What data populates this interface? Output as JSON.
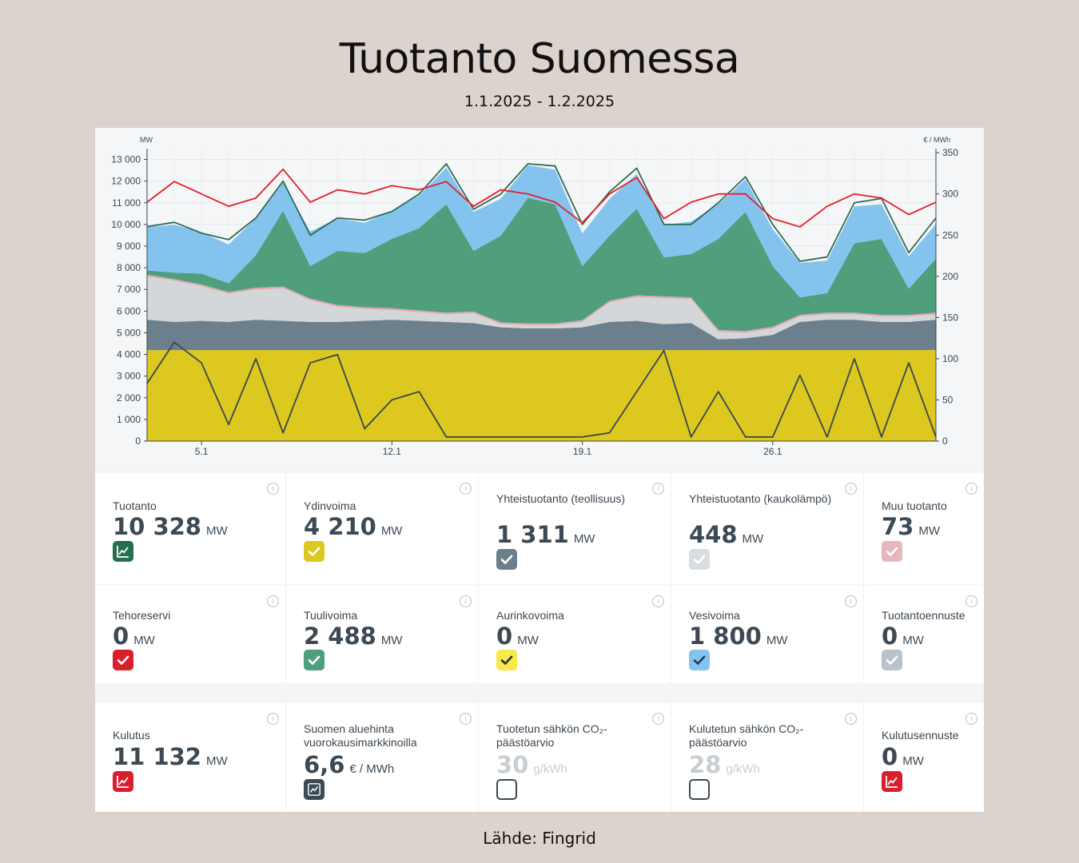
{
  "header": {
    "title": "Tuotanto Suomessa",
    "subtitle": "1.1.2025 - 1.2.2025"
  },
  "footer": {
    "source": "Lähde: Fingrid"
  },
  "chart_data": {
    "type": "area",
    "title": "",
    "ylabel_left": "MW",
    "ylabel_right": "€ / MWh",
    "ylim_left": [
      0,
      13500
    ],
    "ylim_right": [
      0,
      355
    ],
    "yticks_left": [
      0,
      1000,
      2000,
      3000,
      4000,
      5000,
      6000,
      7000,
      8000,
      9000,
      10000,
      11000,
      12000,
      13000
    ],
    "ytick_labels_left": [
      "0",
      "1 000",
      "2 000",
      "3 000",
      "4 000",
      "5 000",
      "6 000",
      "7 000",
      "8 000",
      "9 000",
      "10 000",
      "11 000",
      "12 000",
      "13 000"
    ],
    "yticks_right": [
      0,
      50,
      100,
      150,
      200,
      250,
      300,
      350
    ],
    "ytick_labels_right": [
      "0",
      "50",
      "100",
      "150",
      "200",
      "250",
      "300",
      "350"
    ],
    "xlim": [
      3,
      32
    ],
    "xticks": [
      5,
      12,
      19,
      26
    ],
    "xtick_labels": [
      "5.1",
      "12.1",
      "19.1",
      "26.1"
    ],
    "grid": true,
    "x": [
      3,
      4,
      5,
      6,
      7,
      8,
      9,
      10,
      11,
      12,
      13,
      14,
      15,
      16,
      17,
      18,
      19,
      20,
      21,
      22,
      23,
      24,
      25,
      26,
      27,
      28,
      29,
      30,
      31,
      32
    ],
    "series": [
      {
        "kind": "stack",
        "color": "#dcc81e",
        "values": [
          4200,
          4200,
          4200,
          4200,
          4200,
          4200,
          4200,
          4200,
          4200,
          4200,
          4200,
          4200,
          4200,
          4200,
          4200,
          4200,
          4200,
          4200,
          4200,
          4200,
          4200,
          4200,
          4200,
          4200,
          4200,
          4200,
          4200,
          4200,
          4200,
          4200
        ]
      },
      {
        "kind": "stack",
        "color": "#6b7f8c",
        "values": [
          1400,
          1300,
          1350,
          1300,
          1400,
          1350,
          1300,
          1300,
          1350,
          1400,
          1350,
          1300,
          1250,
          1050,
          1000,
          1000,
          1050,
          1300,
          1350,
          1200,
          1250,
          500,
          550,
          700,
          1300,
          1400,
          1400,
          1300,
          1300,
          1400
        ]
      },
      {
        "kind": "stack",
        "color": "#d3d7da",
        "values": [
          2000,
          1900,
          1600,
          1300,
          1400,
          1500,
          1000,
          700,
          550,
          450,
          400,
          350,
          450,
          150,
          150,
          150,
          250,
          900,
          1100,
          1200,
          1100,
          350,
          250,
          300,
          250,
          250,
          250,
          250,
          250,
          250
        ]
      },
      {
        "kind": "stack",
        "color": "#e6a7ae",
        "values": [
          80,
          80,
          80,
          80,
          80,
          80,
          80,
          80,
          80,
          80,
          80,
          80,
          80,
          80,
          80,
          80,
          80,
          80,
          80,
          80,
          80,
          80,
          80,
          80,
          80,
          80,
          80,
          80,
          80,
          80
        ]
      },
      {
        "kind": "stack",
        "color": "#4f9e7c",
        "values": [
          200,
          300,
          500,
          400,
          1500,
          3500,
          1500,
          2500,
          2500,
          3200,
          3800,
          5000,
          2800,
          4000,
          5800,
          5500,
          2500,
          3000,
          4000,
          1800,
          2000,
          4200,
          5500,
          2800,
          800,
          900,
          3200,
          3500,
          1200,
          2500
        ]
      },
      {
        "kind": "stack",
        "color": "#85c3ef",
        "values": [
          2000,
          2200,
          1900,
          1800,
          1700,
          1300,
          1600,
          1500,
          1400,
          1300,
          1500,
          1700,
          1800,
          1700,
          1500,
          1600,
          1500,
          1700,
          1600,
          1500,
          1500,
          1600,
          1500,
          1700,
          1600,
          1500,
          1700,
          1600,
          1500,
          1600
        ]
      },
      {
        "kind": "line",
        "axis": "left",
        "color": "#2f6b55",
        "values": [
          9900,
          10100,
          9600,
          9300,
          10300,
          12000,
          9500,
          10300,
          10200,
          10600,
          11400,
          12800,
          10700,
          11400,
          12800,
          12700,
          10000,
          11500,
          12600,
          10000,
          10000,
          11000,
          12200,
          10000,
          8300,
          8500,
          11000,
          11200,
          8700,
          10300
        ]
      },
      {
        "kind": "line",
        "axis": "right",
        "color": "#e0202b",
        "values": [
          290,
          315,
          300,
          285,
          295,
          330,
          290,
          305,
          300,
          310,
          305,
          315,
          285,
          305,
          300,
          290,
          265,
          300,
          320,
          270,
          290,
          300,
          300,
          270,
          260,
          285,
          300,
          295,
          275,
          290
        ]
      },
      {
        "kind": "line",
        "axis": "right",
        "color": "#3a4650",
        "values": [
          70,
          120,
          95,
          20,
          100,
          10,
          95,
          105,
          15,
          50,
          60,
          5,
          5,
          5,
          5,
          5,
          5,
          10,
          60,
          110,
          5,
          60,
          5,
          5,
          80,
          5,
          100,
          5,
          95,
          5
        ]
      }
    ]
  },
  "cards": [
    [
      {
        "label": "Tuotanto",
        "value": "10 328",
        "unit": "MW",
        "icon": "trend-chart-icon",
        "bg": "#256e4f",
        "fg": "#ffffff",
        "border": "#256e4f",
        "check": "chart"
      },
      {
        "label": "Ydinvoima",
        "value": "4 210",
        "unit": "MW",
        "icon": "check-icon",
        "bg": "#dcc81e",
        "fg": "#ffffff",
        "border": "#dcc81e",
        "check": "check"
      },
      {
        "label": "Yhteistuotanto (teollisuus)",
        "value": "1 311",
        "unit": "MW",
        "icon": "check-icon",
        "bg": "#6b7f8c",
        "fg": "#ffffff",
        "border": "#6b7f8c",
        "check": "check"
      },
      {
        "label": "Yhteistuotanto (kaukolämpö)",
        "value": "448",
        "unit": "MW",
        "icon": "check-icon",
        "bg": "#d8dde1",
        "fg": "#ffffff",
        "border": "#d8dde1",
        "check": "check"
      },
      {
        "label": "Muu tuotanto",
        "value": "73",
        "unit": "MW",
        "icon": "check-icon",
        "bg": "#e8b7bd",
        "fg": "#ffffff",
        "border": "#e8b7bd",
        "check": "check"
      }
    ],
    [
      {
        "label": "Tehoreservi",
        "value": "0",
        "unit": "MW",
        "icon": "check-icon",
        "bg": "#d91f2b",
        "fg": "#ffffff",
        "border": "#d91f2b",
        "check": "check"
      },
      {
        "label": "Tuulivoima",
        "value": "2 488",
        "unit": "MW",
        "icon": "check-icon",
        "bg": "#4f9e7c",
        "fg": "#ffffff",
        "border": "#4f9e7c",
        "check": "check"
      },
      {
        "label": "Aurinkovoima",
        "value": "0",
        "unit": "MW",
        "icon": "check-icon",
        "bg": "#f7ea4a",
        "fg": "#333333",
        "border": "#f7ea4a",
        "check": "check"
      },
      {
        "label": "Vesivoima",
        "value": "1 800",
        "unit": "MW",
        "icon": "check-icon",
        "bg": "#85c3ef",
        "fg": "#2a3d55",
        "border": "#85c3ef",
        "check": "check"
      },
      {
        "label": "Tuotantoennuste",
        "value": "0",
        "unit": "MW",
        "icon": "check-icon",
        "bg": "#b9c3cb",
        "fg": "#ffffff",
        "border": "#b9c3cb",
        "check": "check"
      }
    ],
    [
      {
        "label": "Kulutus",
        "value": "11 132",
        "unit": "MW",
        "icon": "trend-chart-icon",
        "bg": "#d91f2b",
        "fg": "#ffffff",
        "border": "#d91f2b",
        "check": "chart"
      },
      {
        "label": "Suomen aluehinta vuorokausimarkkinoilla",
        "value": "6,6",
        "unit": "€ / MWh",
        "icon": "trend-chart-icon",
        "bg": "#3d4a55",
        "fg": "#ffffff",
        "border": "#3d4a55",
        "check": "chart2"
      },
      {
        "label": "Tuotetun sähkön CO₂-päästöarvio",
        "value": "30",
        "unit": "g/kWh",
        "icon": "empty-checkbox-icon",
        "bg": "#ffffff",
        "fg": "#ffffff",
        "border": "#3d4a55",
        "check": "none",
        "muted": true
      },
      {
        "label": "Kulutetun sähkön CO₂-päästöarvio",
        "value": "28",
        "unit": "g/kWh",
        "icon": "empty-checkbox-icon",
        "bg": "#ffffff",
        "fg": "#ffffff",
        "border": "#3d4a55",
        "check": "none",
        "muted": true
      },
      {
        "label": "Kulutusennuste",
        "value": "0",
        "unit": "MW",
        "icon": "trend-chart-icon",
        "bg": "#d91f2b",
        "fg": "#ffffff",
        "border": "#d91f2b",
        "check": "chart"
      }
    ]
  ]
}
